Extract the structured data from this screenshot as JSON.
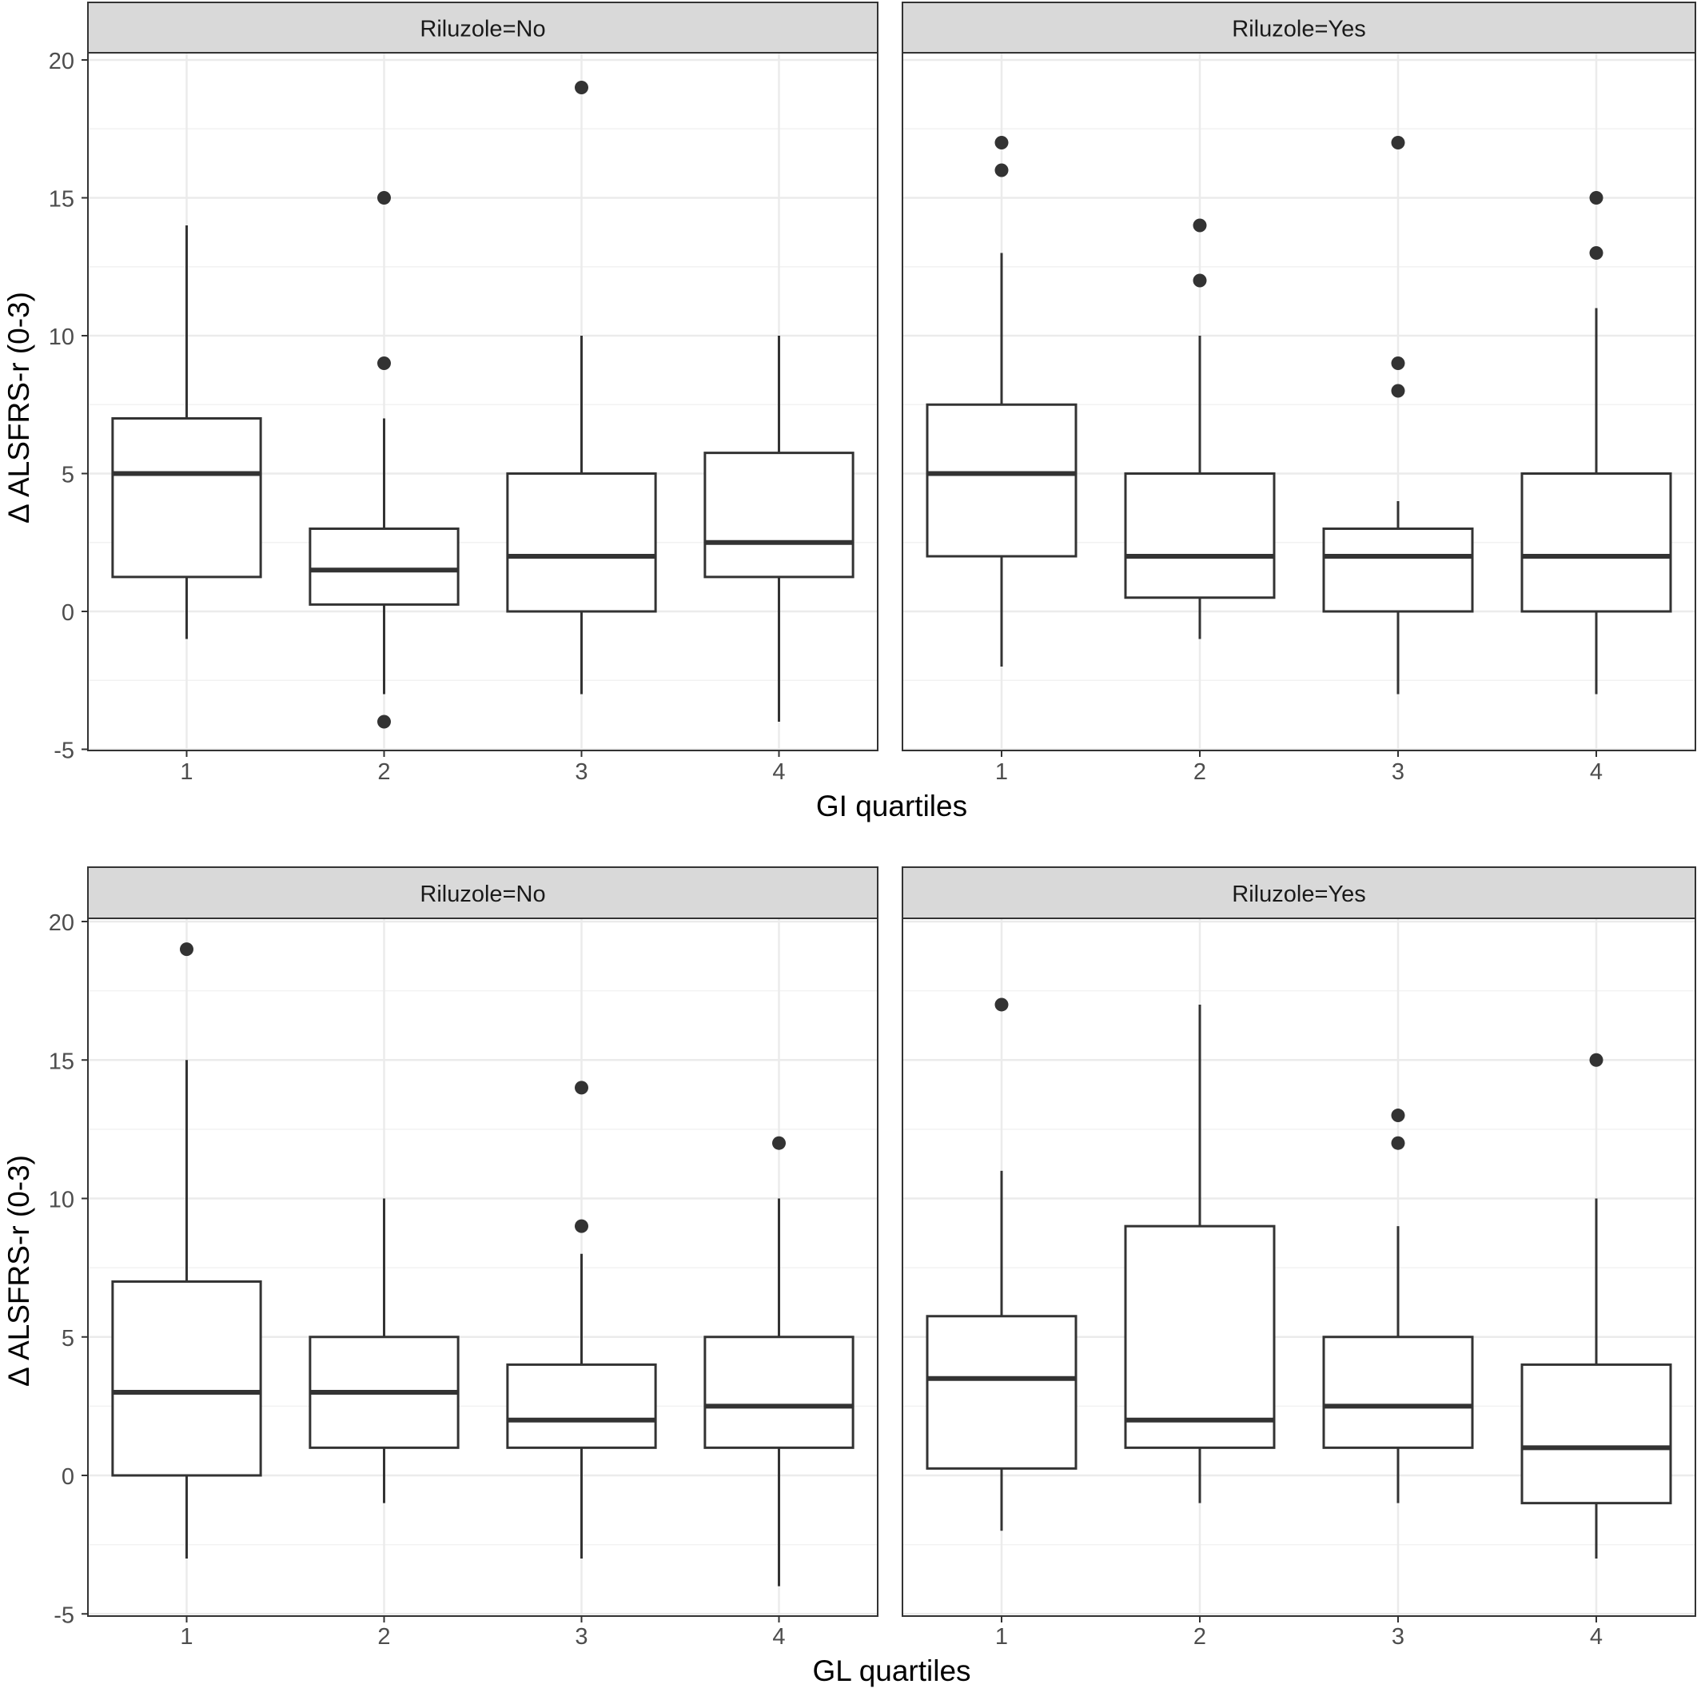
{
  "chart_data": [
    {
      "type": "boxplot",
      "xlabel": "GI quartiles",
      "ylabel": "Δ ALSFRS-r (0-3)",
      "ylim": [
        -5,
        21
      ],
      "yticks": [
        "-5",
        "0",
        "5",
        "10",
        "15",
        "20"
      ],
      "categories": [
        "1",
        "2",
        "3",
        "4"
      ],
      "grid": true,
      "panels": [
        {
          "strip": "Riluzole=No",
          "boxes": [
            {
              "category": "1",
              "whisker_low": -1,
              "q1": 1.25,
              "median": 5,
              "q3": 7,
              "whisker_high": 14,
              "outliers": []
            },
            {
              "category": "2",
              "whisker_low": -3,
              "q1": 0.25,
              "median": 1.5,
              "q3": 3,
              "whisker_high": 7,
              "outliers": [
                -4,
                9,
                15
              ]
            },
            {
              "category": "3",
              "whisker_low": -3,
              "q1": 0,
              "median": 2,
              "q3": 5,
              "whisker_high": 10,
              "outliers": [
                19
              ]
            },
            {
              "category": "4",
              "whisker_low": -4,
              "q1": 1.25,
              "median": 2.5,
              "q3": 5.75,
              "whisker_high": 10,
              "outliers": []
            }
          ]
        },
        {
          "strip": "Riluzole=Yes",
          "boxes": [
            {
              "category": "1",
              "whisker_low": -2,
              "q1": 2,
              "median": 5,
              "q3": 7.5,
              "whisker_high": 13,
              "outliers": [
                16,
                17
              ]
            },
            {
              "category": "2",
              "whisker_low": -1,
              "q1": 0.5,
              "median": 2,
              "q3": 5,
              "whisker_high": 10,
              "outliers": [
                12,
                14
              ]
            },
            {
              "category": "3",
              "whisker_low": -3,
              "q1": 0,
              "median": 2,
              "q3": 3,
              "whisker_high": 4,
              "outliers": [
                8,
                9,
                17
              ]
            },
            {
              "category": "4",
              "whisker_low": -3,
              "q1": 0,
              "median": 2,
              "q3": 5,
              "whisker_high": 11,
              "outliers": [
                13,
                15
              ]
            }
          ]
        }
      ]
    },
    {
      "type": "boxplot",
      "xlabel": "GL quartiles",
      "ylabel": "Δ ALSFRS-r (0-3)",
      "ylim": [
        -5,
        21
      ],
      "yticks": [
        "-5",
        "0",
        "5",
        "10",
        "15",
        "20"
      ],
      "categories": [
        "1",
        "2",
        "3",
        "4"
      ],
      "grid": true,
      "panels": [
        {
          "strip": "Riluzole=No",
          "boxes": [
            {
              "category": "1",
              "whisker_low": -3,
              "q1": 0,
              "median": 3,
              "q3": 7,
              "whisker_high": 15,
              "outliers": [
                19
              ]
            },
            {
              "category": "2",
              "whisker_low": -1,
              "q1": 1,
              "median": 3,
              "q3": 5,
              "whisker_high": 10,
              "outliers": []
            },
            {
              "category": "3",
              "whisker_low": -3,
              "q1": 1,
              "median": 2,
              "q3": 4,
              "whisker_high": 8,
              "outliers": [
                9,
                14
              ]
            },
            {
              "category": "4",
              "whisker_low": -4,
              "q1": 1,
              "median": 2.5,
              "q3": 5,
              "whisker_high": 10,
              "outliers": [
                12
              ]
            }
          ]
        },
        {
          "strip": "Riluzole=Yes",
          "boxes": [
            {
              "category": "1",
              "whisker_low": -2,
              "q1": 0.25,
              "median": 3.5,
              "q3": 5.75,
              "whisker_high": 11,
              "outliers": [
                17
              ]
            },
            {
              "category": "2",
              "whisker_low": -1,
              "q1": 1,
              "median": 2,
              "q3": 9,
              "whisker_high": 17,
              "outliers": []
            },
            {
              "category": "3",
              "whisker_low": -1,
              "q1": 1,
              "median": 2.5,
              "q3": 5,
              "whisker_high": 9,
              "outliers": [
                12,
                13
              ]
            },
            {
              "category": "4",
              "whisker_low": -3,
              "q1": -1,
              "median": 1,
              "q3": 4,
              "whisker_high": 10,
              "outliers": [
                15
              ]
            }
          ]
        }
      ]
    }
  ]
}
